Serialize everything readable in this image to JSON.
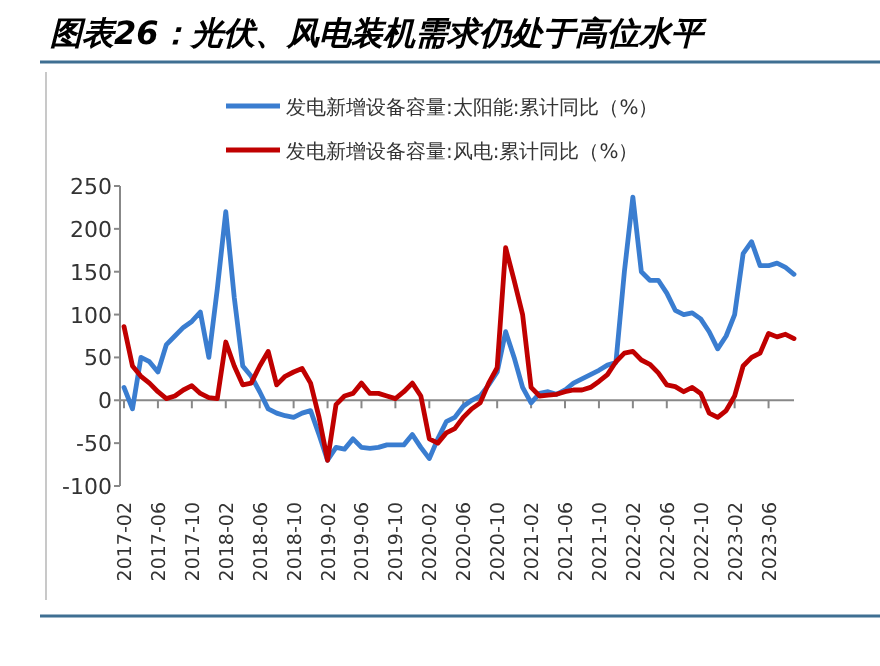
{
  "chart_data": {
    "type": "line",
    "title": "图表26：光伏、风电装机需求仍处于高位水平",
    "categories": [
      "2017-02",
      null,
      null,
      null,
      "2017-06",
      null,
      null,
      null,
      "2017-10",
      null,
      null,
      null,
      "2018-02",
      null,
      null,
      null,
      "2018-06",
      null,
      null,
      null,
      "2018-10",
      null,
      null,
      null,
      "2019-02",
      null,
      null,
      null,
      "2019-06",
      null,
      null,
      null,
      "2019-10",
      null,
      null,
      null,
      "2020-02",
      null,
      null,
      null,
      "2020-06",
      null,
      null,
      null,
      "2020-10",
      null,
      null,
      null,
      "2021-02",
      null,
      null,
      null,
      "2021-06",
      null,
      null,
      null,
      "2021-10",
      null,
      null,
      null,
      "2022-02",
      null,
      null,
      null,
      "2022-06",
      null,
      null,
      null,
      "2022-10",
      null,
      null,
      null,
      "2023-02",
      null,
      null,
      null,
      "2023-06",
      null,
      null,
      null
    ],
    "series": [
      {
        "name": "发电新增设备容量:太阳能:累计同比（%）",
        "color": "#3a7dd0",
        "values": [
          15,
          -10,
          50,
          45,
          33,
          65,
          75,
          85,
          92,
          103,
          50,
          130,
          220,
          120,
          40,
          28,
          10,
          -10,
          -15,
          -18,
          -20,
          -15,
          -12,
          -40,
          -70,
          -55,
          -57,
          -45,
          -55,
          -56,
          -55,
          -52,
          -52,
          -52,
          -40,
          -55,
          -68,
          -45,
          -25,
          -20,
          -7,
          0,
          5,
          18,
          33,
          80,
          50,
          15,
          -3,
          8,
          10,
          7,
          12,
          20,
          25,
          30,
          35,
          41,
          44,
          150,
          237,
          150,
          140,
          140,
          125,
          105,
          100,
          102,
          95,
          80,
          60,
          75,
          100,
          171,
          185,
          157,
          157,
          160,
          155,
          147
        ]
      },
      {
        "name": "发电新增设备容量:风电:累计同比（%）",
        "color": "#c00000",
        "values": [
          86,
          40,
          28,
          20,
          10,
          2,
          5,
          12,
          17,
          8,
          3,
          2,
          68,
          40,
          18,
          20,
          40,
          57,
          18,
          28,
          33,
          37,
          20,
          -20,
          -70,
          -5,
          5,
          8,
          20,
          8,
          8,
          5,
          2,
          10,
          20,
          5,
          -45,
          -50,
          -38,
          -33,
          -20,
          -10,
          -3,
          20,
          38,
          178,
          140,
          100,
          15,
          5,
          6,
          7,
          10,
          12,
          12,
          15,
          22,
          30,
          45,
          55,
          57,
          47,
          42,
          32,
          18,
          16,
          10,
          15,
          8,
          -15,
          -20,
          -12,
          5,
          40,
          50,
          55,
          78,
          74,
          77,
          72
        ]
      }
    ],
    "ylim": [
      -100,
      250
    ],
    "yticks": [
      -100,
      -50,
      0,
      50,
      100,
      150,
      200,
      250
    ],
    "legend": "top",
    "marker": "none",
    "line_style": "solid"
  }
}
